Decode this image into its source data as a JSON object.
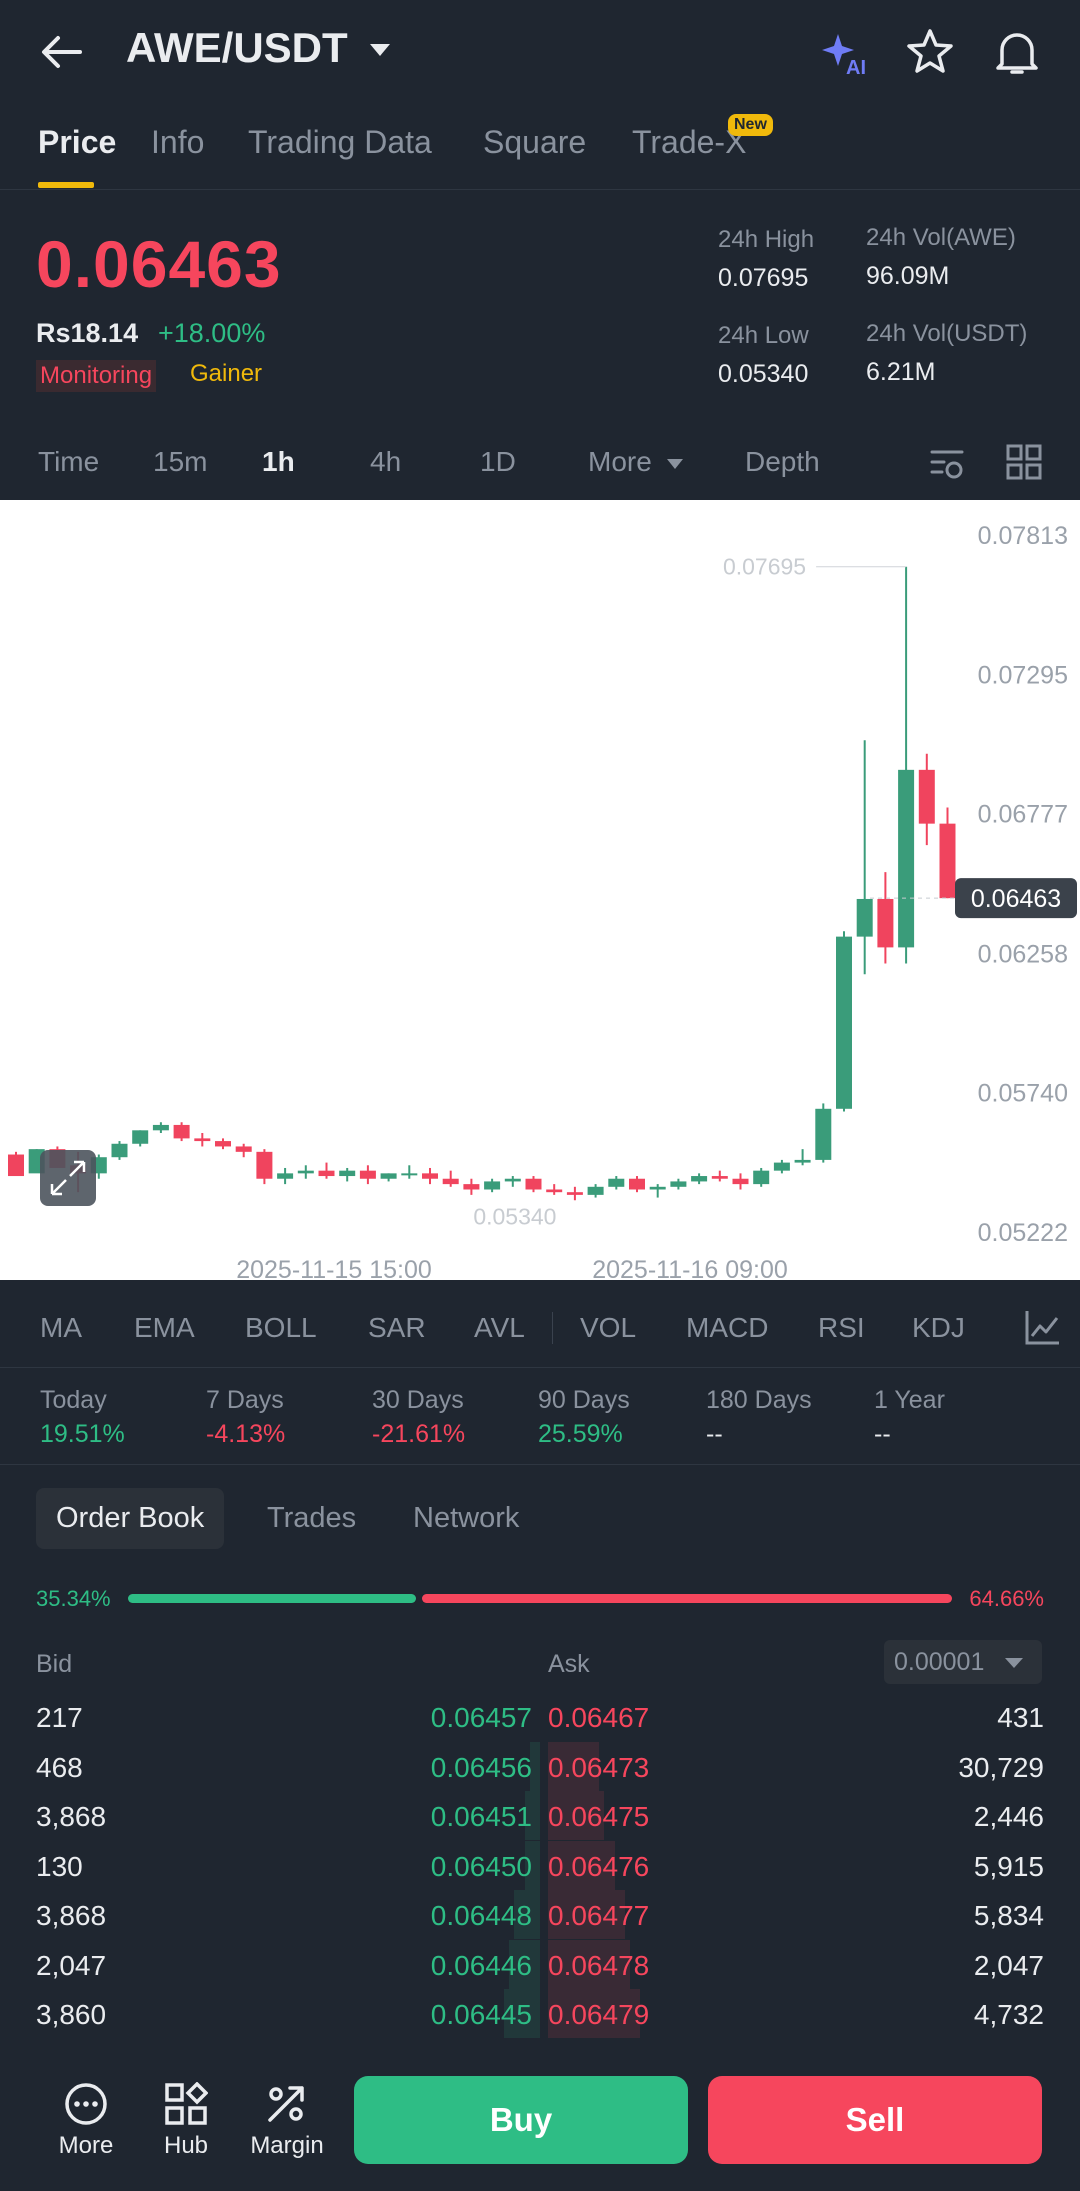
{
  "header": {
    "pair": "AWE/USDT",
    "tabs": [
      "Price",
      "Info",
      "Trading Data",
      "Square",
      "Trade-X"
    ],
    "new_badge": "New",
    "icons": [
      "back-arrow-icon",
      "chevron-down-icon",
      "ai-sparkle-icon",
      "star-icon",
      "bell-icon"
    ]
  },
  "ticker": {
    "price": "0.06463",
    "fiat": "Rs18.14",
    "change": "+18.00%",
    "tag_monitoring": "Monitoring",
    "tag_gainer": "Gainer",
    "high_label": "24h High",
    "high": "0.07695",
    "low_label": "24h Low",
    "low": "0.05340",
    "vol_base_label": "24h Vol(AWE)",
    "vol_base": "96.09M",
    "vol_quote_label": "24h Vol(USDT)",
    "vol_quote": "6.21M"
  },
  "intervals": [
    "Time",
    "15m",
    "1h",
    "4h",
    "1D",
    "More",
    "Depth"
  ],
  "chart_data": {
    "type": "candlestick",
    "interval": "1h",
    "y_ticks": [
      "0.07813",
      "0.07295",
      "0.06777",
      "0.06258",
      "0.05740",
      "0.05222"
    ],
    "ylim": [
      0.051,
      0.08
    ],
    "x_labels": [
      "2025-11-15 15:00",
      "2025-11-16 09:00"
    ],
    "high_marker": "0.07695",
    "low_marker": "0.05340",
    "last_price": "0.06463",
    "candles": [
      [
        0.0551,
        0.0552,
        0.0544,
        0.0543
      ],
      [
        0.0544,
        0.0553,
        0.0545,
        0.0553
      ],
      [
        0.0553,
        0.0554,
        0.0547,
        0.0546
      ],
      [
        0.0547,
        0.0552,
        0.0537,
        0.0544
      ],
      [
        0.0544,
        0.0551,
        0.0542,
        0.055
      ],
      [
        0.055,
        0.0556,
        0.0549,
        0.0555
      ],
      [
        0.0555,
        0.056,
        0.0554,
        0.056
      ],
      [
        0.056,
        0.0563,
        0.0559,
        0.0562
      ],
      [
        0.0562,
        0.0563,
        0.0556,
        0.0557
      ],
      [
        0.0557,
        0.0559,
        0.0554,
        0.0556
      ],
      [
        0.0556,
        0.0557,
        0.0553,
        0.0554
      ],
      [
        0.0554,
        0.0555,
        0.055,
        0.0552
      ],
      [
        0.0552,
        0.0553,
        0.054,
        0.0542
      ],
      [
        0.0542,
        0.0546,
        0.054,
        0.0544
      ],
      [
        0.0544,
        0.0547,
        0.0542,
        0.0545
      ],
      [
        0.0545,
        0.0548,
        0.0542,
        0.0543
      ],
      [
        0.0543,
        0.0546,
        0.0541,
        0.0545
      ],
      [
        0.0545,
        0.0547,
        0.054,
        0.0542
      ],
      [
        0.0542,
        0.0544,
        0.0541,
        0.0544
      ],
      [
        0.0544,
        0.0547,
        0.0542,
        0.0544
      ],
      [
        0.0544,
        0.0546,
        0.054,
        0.0542
      ],
      [
        0.0542,
        0.0545,
        0.0539,
        0.054
      ],
      [
        0.054,
        0.0542,
        0.0536,
        0.0538
      ],
      [
        0.0538,
        0.0542,
        0.0537,
        0.0541
      ],
      [
        0.0541,
        0.0543,
        0.0539,
        0.0542
      ],
      [
        0.0542,
        0.0543,
        0.0537,
        0.0538
      ],
      [
        0.0538,
        0.054,
        0.0536,
        0.0537
      ],
      [
        0.0537,
        0.0539,
        0.0534,
        0.0536
      ],
      [
        0.0536,
        0.054,
        0.0535,
        0.0539
      ],
      [
        0.0539,
        0.0543,
        0.0538,
        0.0542
      ],
      [
        0.0542,
        0.0543,
        0.0537,
        0.0538
      ],
      [
        0.0538,
        0.054,
        0.0535,
        0.0539
      ],
      [
        0.0539,
        0.0542,
        0.0538,
        0.0541
      ],
      [
        0.0541,
        0.0544,
        0.054,
        0.0543
      ],
      [
        0.0543,
        0.0545,
        0.0541,
        0.0542
      ],
      [
        0.0542,
        0.0544,
        0.0538,
        0.054
      ],
      [
        0.054,
        0.0546,
        0.0539,
        0.0545
      ],
      [
        0.0545,
        0.0549,
        0.0544,
        0.0548
      ],
      [
        0.0548,
        0.0553,
        0.0547,
        0.0549
      ],
      [
        0.0549,
        0.057,
        0.0548,
        0.0568
      ],
      [
        0.0568,
        0.0634,
        0.0567,
        0.0632
      ],
      [
        0.0632,
        0.0705,
        0.0618,
        0.0646
      ],
      [
        0.0646,
        0.0656,
        0.0622,
        0.0628
      ],
      [
        0.0628,
        0.07695,
        0.0622,
        0.0694
      ],
      [
        0.0694,
        0.07,
        0.0666,
        0.0674
      ],
      [
        0.0674,
        0.068,
        0.06463,
        0.06463
      ]
    ]
  },
  "indicators": [
    "MA",
    "EMA",
    "BOLL",
    "SAR",
    "AVL",
    "VOL",
    "MACD",
    "RSI",
    "KDJ"
  ],
  "performance": [
    {
      "label": "Today",
      "value": "19.51%",
      "dir": "up"
    },
    {
      "label": "7 Days",
      "value": "-4.13%",
      "dir": "down"
    },
    {
      "label": "30 Days",
      "value": "-21.61%",
      "dir": "down"
    },
    {
      "label": "90 Days",
      "value": "25.59%",
      "dir": "up"
    },
    {
      "label": "180 Days",
      "value": "--",
      "dir": "none"
    },
    {
      "label": "1 Year",
      "value": "--",
      "dir": "none"
    }
  ],
  "orderbook": {
    "tabs": [
      "Order Book",
      "Trades",
      "Network"
    ],
    "bid_ratio": "35.34%",
    "ask_ratio": "64.66%",
    "bid_fraction": 0.3534,
    "bid_label": "Bid",
    "ask_label": "Ask",
    "precision": "0.00001",
    "rows": [
      {
        "bid_qty": "217",
        "bid_price": "0.06457",
        "ask_price": "0.06467",
        "ask_qty": "431",
        "bid_depth": 0.0,
        "ask_depth": 0.0
      },
      {
        "bid_qty": "468",
        "bid_price": "0.06456",
        "ask_price": "0.06473",
        "ask_qty": "30,729",
        "bid_depth": 0.02,
        "ask_depth": 0.1
      },
      {
        "bid_qty": "3,868",
        "bid_price": "0.06451",
        "ask_price": "0.06475",
        "ask_qty": "2,446",
        "bid_depth": 0.03,
        "ask_depth": 0.11
      },
      {
        "bid_qty": "130",
        "bid_price": "0.06450",
        "ask_price": "0.06476",
        "ask_qty": "5,915",
        "bid_depth": 0.03,
        "ask_depth": 0.13
      },
      {
        "bid_qty": "3,868",
        "bid_price": "0.06448",
        "ask_price": "0.06477",
        "ask_qty": "5,834",
        "bid_depth": 0.05,
        "ask_depth": 0.15
      },
      {
        "bid_qty": "2,047",
        "bid_price": "0.06446",
        "ask_price": "0.06478",
        "ask_qty": "2,047",
        "bid_depth": 0.06,
        "ask_depth": 0.16
      },
      {
        "bid_qty": "3,860",
        "bid_price": "0.06445",
        "ask_price": "0.06479",
        "ask_qty": "4,732",
        "bid_depth": 0.07,
        "ask_depth": 0.18
      }
    ]
  },
  "bottom": {
    "more": "More",
    "hub": "Hub",
    "margin": "Margin",
    "buy": "Buy",
    "sell": "Sell"
  },
  "colors": {
    "up": "#2ebd85",
    "down": "#f6465d",
    "accent": "#f0b90b",
    "bg": "#1f2630"
  }
}
